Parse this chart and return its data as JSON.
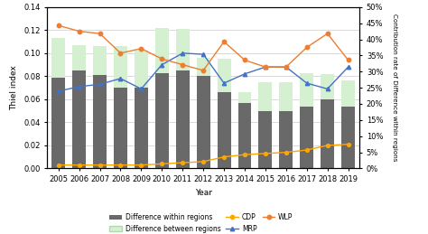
{
  "years": [
    2005,
    2006,
    2007,
    2008,
    2009,
    2010,
    2011,
    2012,
    2013,
    2014,
    2015,
    2016,
    2017,
    2018,
    2019
  ],
  "diff_within": [
    0.079,
    0.085,
    0.081,
    0.07,
    0.07,
    0.083,
    0.085,
    0.08,
    0.066,
    0.057,
    0.05,
    0.05,
    0.054,
    0.06,
    0.054
  ],
  "diff_between_total": [
    0.113,
    0.107,
    0.106,
    0.106,
    0.102,
    0.122,
    0.121,
    0.096,
    0.095,
    0.066,
    0.075,
    0.075,
    0.083,
    0.082,
    0.076
  ],
  "CDP": [
    0.003,
    0.003,
    0.003,
    0.003,
    0.003,
    0.004,
    0.005,
    0.006,
    0.01,
    0.012,
    0.013,
    0.014,
    0.016,
    0.02,
    0.021
  ],
  "MRP": [
    0.067,
    0.071,
    0.073,
    0.078,
    0.069,
    0.09,
    0.1,
    0.099,
    0.074,
    0.082,
    0.088,
    0.088,
    0.074,
    0.069,
    0.088
  ],
  "WLP": [
    0.124,
    0.119,
    0.117,
    0.1,
    0.104,
    0.095,
    0.09,
    0.085,
    0.11,
    0.094,
    0.088,
    0.088,
    0.105,
    0.117,
    0.094
  ],
  "bar_within_color": "#696969",
  "bar_between_color": "#d5f0d0",
  "CDP_color": "#FFA500",
  "MRP_color": "#4472C4",
  "WLP_color": "#ED7D31",
  "ylabel_left": "Thiel index",
  "ylabel_right": "Contribution rate of Difference within regions",
  "xlabel": "Year",
  "ylim_left": [
    0,
    0.14
  ],
  "ylim_right": [
    0,
    0.5
  ],
  "yticks_left": [
    0.0,
    0.02,
    0.04,
    0.06,
    0.08,
    0.1,
    0.12,
    0.14
  ],
  "yticks_right_vals": [
    0.0,
    0.05,
    0.1,
    0.15,
    0.2,
    0.25,
    0.3,
    0.35,
    0.4,
    0.45,
    0.5
  ],
  "yticks_right_labels": [
    "0%",
    "5%",
    "10%",
    "15%",
    "20%",
    "25%",
    "30%",
    "35%",
    "40%",
    "45%",
    "50%"
  ]
}
